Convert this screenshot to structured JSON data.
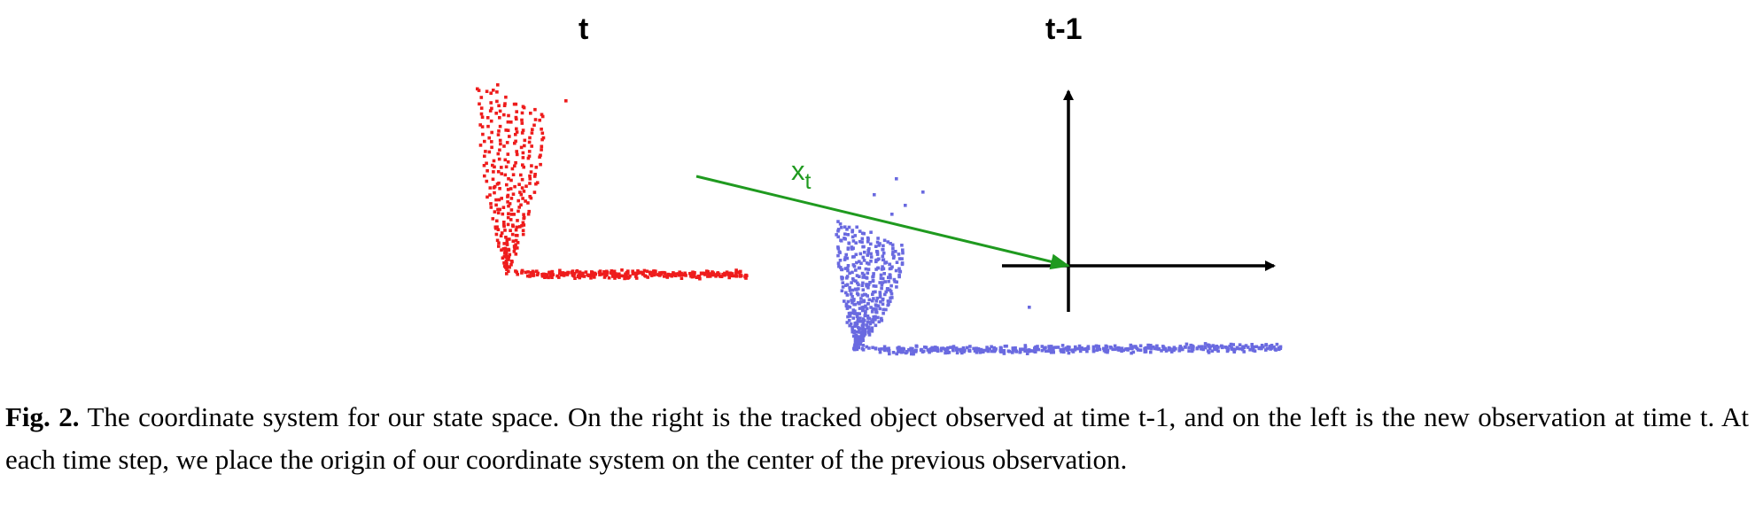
{
  "figure": {
    "label_left": "t",
    "label_right": "t-1",
    "vector_label_main": "x",
    "vector_label_sub": "t",
    "colors": {
      "current_points": "#ee1c1c",
      "previous_points": "#6a6ae0",
      "vector": "#1f9a1f",
      "axes": "#000000"
    }
  },
  "caption": {
    "label": "Fig. 2.",
    "text": " The coordinate system for our state space. On the right is the tracked object observed at time t-1, and on the left is the new observation at time t. At each time step, we place the origin of our coordinate system on the center of the previous observation."
  }
}
